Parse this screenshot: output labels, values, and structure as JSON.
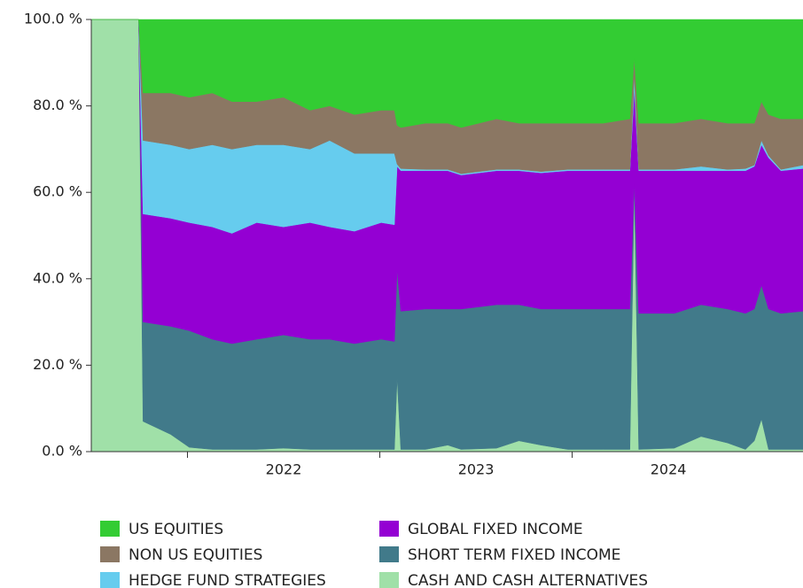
{
  "chart_data": {
    "type": "stacked_area",
    "x": [
      2021.5,
      2021.746,
      2021.769,
      2021.912,
      2022.009,
      2022.129,
      2022.231,
      2022.36,
      2022.499,
      2022.637,
      2022.739,
      2022.868,
      2023.007,
      2023.076,
      2023.09,
      2023.109,
      2023.238,
      2023.353,
      2023.423,
      2023.607,
      2023.723,
      2023.838,
      2023.977,
      2024.162,
      2024.3,
      2024.323,
      2024.346,
      2024.531,
      2024.67,
      2024.808,
      2024.901,
      2024.947,
      2024.984,
      2025.021,
      2025.085,
      2025.2
    ],
    "series": [
      {
        "name": "US  EQUITIES",
        "color": "#33cc33",
        "values": [
          0,
          0,
          17,
          17,
          18,
          17,
          19,
          19,
          18,
          21,
          20,
          22,
          21,
          21,
          24.5,
          25,
          24,
          24,
          25,
          23,
          24,
          24,
          24,
          24,
          23,
          9,
          24,
          24,
          23,
          24,
          24,
          24,
          19,
          22,
          23,
          23
        ]
      },
      {
        "name": "NON US EQUITIES",
        "color": "#8b7763",
        "values": [
          0,
          0,
          11,
          12,
          12,
          12,
          11,
          10,
          11,
          9,
          8,
          9,
          10,
          10,
          9,
          9.5,
          10.7,
          10.7,
          10.7,
          11.7,
          10.7,
          11.2,
          10.7,
          10.7,
          11.7,
          4,
          10.7,
          10.7,
          11,
          10.7,
          10.5,
          9.7,
          9,
          9.5,
          11.7,
          10.7
        ]
      },
      {
        "name": "HEDGE FUND STRATEGIES",
        "color": "#66ccee",
        "values": [
          0,
          0,
          17,
          17,
          17,
          19,
          19.5,
          18,
          19,
          17,
          20,
          18,
          16,
          16.5,
          0.5,
          0.5,
          0.3,
          0.3,
          0.3,
          0.3,
          0.3,
          0.3,
          0.3,
          0.3,
          0.3,
          3,
          0.3,
          0.3,
          1,
          0.3,
          0.5,
          0.3,
          1,
          0.5,
          0.3,
          0.8
        ]
      },
      {
        "name": "GLOBAL FIXED INCOME",
        "color": "#9400d3",
        "values": [
          0,
          0,
          25,
          25,
          25,
          26,
          25.5,
          27,
          25,
          27,
          26,
          26,
          27,
          27,
          24,
          32.5,
          32,
          32,
          31,
          31,
          31,
          31.5,
          32,
          32,
          32,
          22,
          33,
          33,
          31,
          32,
          33,
          33,
          32.5,
          35,
          33,
          33
        ]
      },
      {
        "name": "SHORT TERM FIXED INCOME",
        "color": "#417a8a",
        "values": [
          0,
          0,
          23,
          25,
          27,
          25.5,
          24.5,
          25.5,
          26.2,
          25.5,
          25.5,
          24.5,
          25.5,
          25,
          25,
          32,
          32.5,
          31.5,
          32.5,
          33.2,
          31.5,
          31.5,
          32.5,
          32.5,
          32.5,
          1,
          31.5,
          31.2,
          30.5,
          31,
          31.5,
          30.5,
          31,
          32.5,
          31.5,
          32
        ]
      },
      {
        "name": "CASH AND CASH ALTERNATIVES",
        "color": "#a0e0a8",
        "values": [
          100,
          100,
          7,
          4,
          1,
          0.5,
          0.5,
          0.5,
          0.8,
          0.5,
          0.5,
          0.5,
          0.5,
          0.5,
          17,
          0.5,
          0.5,
          1.5,
          0.5,
          0.8,
          2.5,
          1.5,
          0.5,
          0.5,
          0.5,
          61,
          0.5,
          0.8,
          3.5,
          2,
          0.5,
          2.5,
          7.5,
          0.5,
          0.5,
          0.5
        ]
      }
    ],
    "xlim": [
      2021.5,
      2025.2
    ],
    "xticks": [
      2022,
      2023,
      2024
    ],
    "ylim": [
      0,
      100
    ],
    "yticks": [
      {
        "value": 0,
        "label": "0.0 %"
      },
      {
        "value": 20,
        "label": "20.0 %"
      },
      {
        "value": 40,
        "label": "40.0 %"
      },
      {
        "value": 60,
        "label": "60.0 %"
      },
      {
        "value": 80,
        "label": "80.0 %"
      },
      {
        "value": 100,
        "label": "100.0 %"
      }
    ]
  }
}
